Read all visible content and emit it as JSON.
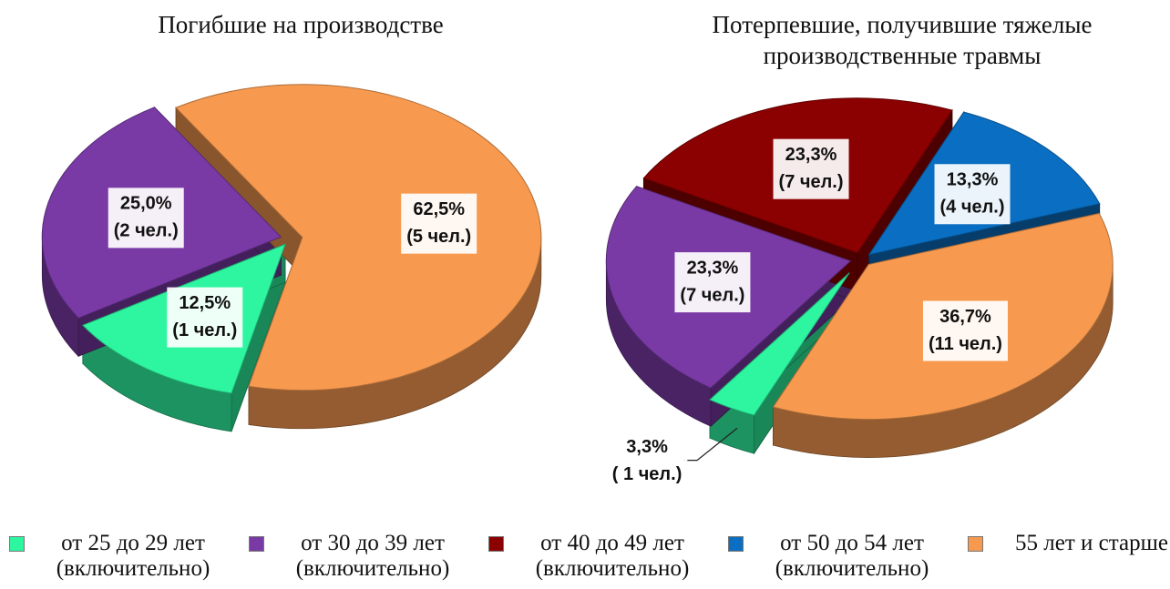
{
  "chart_data": [
    {
      "type": "pie",
      "title": "Погибшие на производстве",
      "categories": [
        "от 25 до 29 лет (включительно)",
        "от 30 до 39 лет (включительно)",
        "55 лет и старше"
      ],
      "values": [
        12.5,
        25.0,
        62.5
      ],
      "value_labels": [
        "12,5%",
        "25,0%",
        "62,5%"
      ],
      "count_labels": [
        "(1 чел.)",
        "(2 чел.)",
        "(5 чел.)"
      ],
      "colors": [
        "#2ef5a0",
        "#7a3aa6",
        "#f79a50"
      ]
    },
    {
      "type": "pie",
      "title": "Потерпевшие, получившие тяжелые производственные травмы",
      "categories": [
        "от 25 до 29 лет (включительно)",
        "от 30 до 39 лет (включительно)",
        "от 40 до 49 лет (включительно)",
        "от 50 до 54 лет (включительно)",
        "55 лет и старше"
      ],
      "values": [
        3.3,
        23.3,
        23.3,
        13.3,
        36.7
      ],
      "value_labels": [
        "3,3%",
        "23,3%",
        "23,3%",
        "13,3%",
        "36,7%"
      ],
      "count_labels": [
        "( 1 чел.)",
        "(7 чел.)",
        "(7 чел.)",
        "(4 чел.)",
        "(11 чел.)"
      ],
      "colors": [
        "#2ef5a0",
        "#7a3aa6",
        "#8b0000",
        "#0a6fc2",
        "#f79a50"
      ]
    }
  ]
}
